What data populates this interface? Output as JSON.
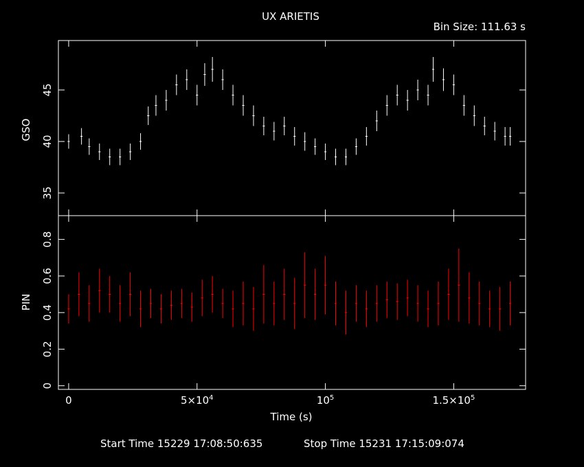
{
  "header": {
    "title": "UX ARIETIS",
    "bin_size": "Bin Size: 111.63 s"
  },
  "footer": {
    "start_time": "Start Time 15229 17:08:50:635",
    "stop_time": "Stop Time 15231 17:15:09:074"
  },
  "colors": {
    "background": "#000000",
    "axes": "#ffffff",
    "gso": "#ffffff",
    "pin": "#ff0000"
  },
  "chart_data": [
    {
      "type": "scatter",
      "panel": "top",
      "ylabel": "GSO",
      "xlim": [
        -4000,
        178000
      ],
      "ylim": [
        32.8,
        49.8
      ],
      "y_ticks": [
        35,
        40,
        45
      ],
      "y_tick_labels": [
        "35",
        "40",
        "45"
      ],
      "series": [
        {
          "x": [
            0,
            5000,
            8000,
            12000,
            16000,
            20000,
            24000,
            28000,
            31000,
            34000,
            38000,
            42000,
            46000,
            50000,
            53000,
            56000,
            60000,
            64000,
            68000,
            72000,
            76000,
            80000,
            84000,
            88000,
            92000,
            96000,
            100000,
            104000,
            108000,
            112000,
            116000,
            120000,
            124000,
            128000,
            132000,
            136000,
            140000,
            142000,
            146000,
            150000,
            154000,
            158000,
            162000,
            166000,
            170000,
            172000
          ],
          "y": [
            40.0,
            40.5,
            39.5,
            39.0,
            38.5,
            38.5,
            39.0,
            40.0,
            42.5,
            43.5,
            44.0,
            45.5,
            46.0,
            44.5,
            46.5,
            47.0,
            46.0,
            44.5,
            43.5,
            42.5,
            41.5,
            41.0,
            41.5,
            40.5,
            40.0,
            39.5,
            39.0,
            38.5,
            38.5,
            39.5,
            40.5,
            42.0,
            43.5,
            44.5,
            44.0,
            45.0,
            44.5,
            47.0,
            46.0,
            45.5,
            43.5,
            42.5,
            41.5,
            41.0,
            40.5,
            40.5
          ],
          "err": [
            0.7,
            0.8,
            0.8,
            0.8,
            0.8,
            0.8,
            0.8,
            0.8,
            0.9,
            1.0,
            1.0,
            1.0,
            1.0,
            1.0,
            1.1,
            1.2,
            1.0,
            1.0,
            1.0,
            1.0,
            0.9,
            0.9,
            0.9,
            0.9,
            0.9,
            0.8,
            0.8,
            0.8,
            0.8,
            0.8,
            0.9,
            1.0,
            1.0,
            1.0,
            1.0,
            1.0,
            1.0,
            1.2,
            1.1,
            1.0,
            1.0,
            1.0,
            0.9,
            0.9,
            0.9,
            0.9
          ]
        }
      ]
    },
    {
      "type": "scatter",
      "panel": "bottom",
      "ylabel": "PIN",
      "xlabel": "Time (s)",
      "xlim": [
        -4000,
        178000
      ],
      "ylim": [
        -0.02,
        0.93
      ],
      "y_ticks": [
        0,
        0.2,
        0.4,
        0.6,
        0.8
      ],
      "y_tick_labels": [
        "0",
        "0.2",
        "0.4",
        "0.6",
        "0.8"
      ],
      "x_ticks": [
        0,
        50000,
        100000,
        150000
      ],
      "x_tick_labels": [
        {
          "base": "0",
          "exp": ""
        },
        {
          "base": "5×10",
          "exp": "4"
        },
        {
          "base": "10",
          "exp": "5"
        },
        {
          "base": "1.5×10",
          "exp": "5"
        }
      ],
      "series": [
        {
          "x": [
            0,
            4000,
            8000,
            12000,
            16000,
            20000,
            24000,
            28000,
            32000,
            36000,
            40000,
            44000,
            48000,
            52000,
            56000,
            60000,
            64000,
            68000,
            72000,
            76000,
            80000,
            84000,
            88000,
            92000,
            96000,
            100000,
            104000,
            108000,
            112000,
            116000,
            120000,
            124000,
            128000,
            132000,
            136000,
            140000,
            144000,
            148000,
            152000,
            156000,
            160000,
            164000,
            168000,
            172000
          ],
          "y": [
            0.42,
            0.5,
            0.45,
            0.52,
            0.5,
            0.45,
            0.5,
            0.42,
            0.45,
            0.42,
            0.44,
            0.45,
            0.43,
            0.48,
            0.5,
            0.45,
            0.42,
            0.45,
            0.42,
            0.5,
            0.45,
            0.5,
            0.45,
            0.55,
            0.5,
            0.55,
            0.45,
            0.4,
            0.45,
            0.42,
            0.45,
            0.47,
            0.46,
            0.48,
            0.45,
            0.42,
            0.45,
            0.5,
            0.55,
            0.48,
            0.45,
            0.42,
            0.42,
            0.45
          ],
          "err": [
            0.08,
            0.12,
            0.1,
            0.12,
            0.1,
            0.1,
            0.12,
            0.1,
            0.08,
            0.08,
            0.08,
            0.08,
            0.08,
            0.1,
            0.1,
            0.08,
            0.1,
            0.12,
            0.12,
            0.16,
            0.12,
            0.14,
            0.14,
            0.18,
            0.14,
            0.16,
            0.12,
            0.12,
            0.1,
            0.1,
            0.1,
            0.1,
            0.1,
            0.1,
            0.1,
            0.1,
            0.12,
            0.14,
            0.2,
            0.14,
            0.12,
            0.1,
            0.12,
            0.12
          ]
        }
      ]
    }
  ]
}
